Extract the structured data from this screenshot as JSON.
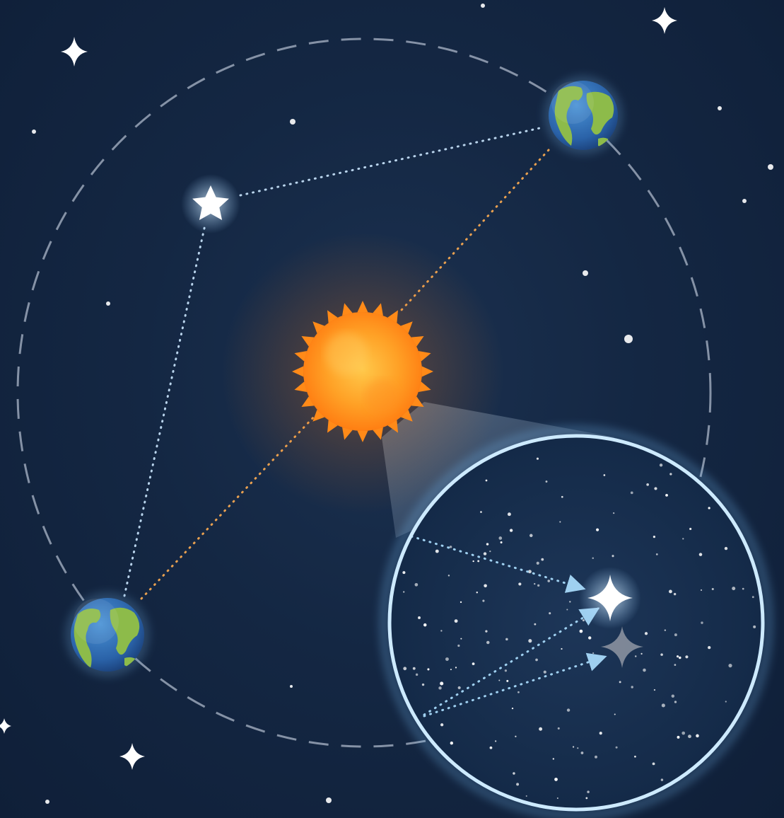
{
  "colors": {
    "background": "#132641",
    "orbit": "#9aa6b8",
    "sun_core": "#ffb02e",
    "sun_rim": "#ff7a10",
    "earth_ocean": "#2f6fb6",
    "earth_land": "#8dbb4a",
    "sight_line_star": "#b9d4ec",
    "sight_line_sun": "#e8a050",
    "magnifier_ring": "#cdeaff",
    "apparent_star": "#ffffff",
    "true_star": "#8f97a3"
  },
  "icons": {
    "sun": "sun-icon",
    "earth": "earth-icon",
    "star": "star-icon",
    "magnifier": "magnifier-lens"
  }
}
